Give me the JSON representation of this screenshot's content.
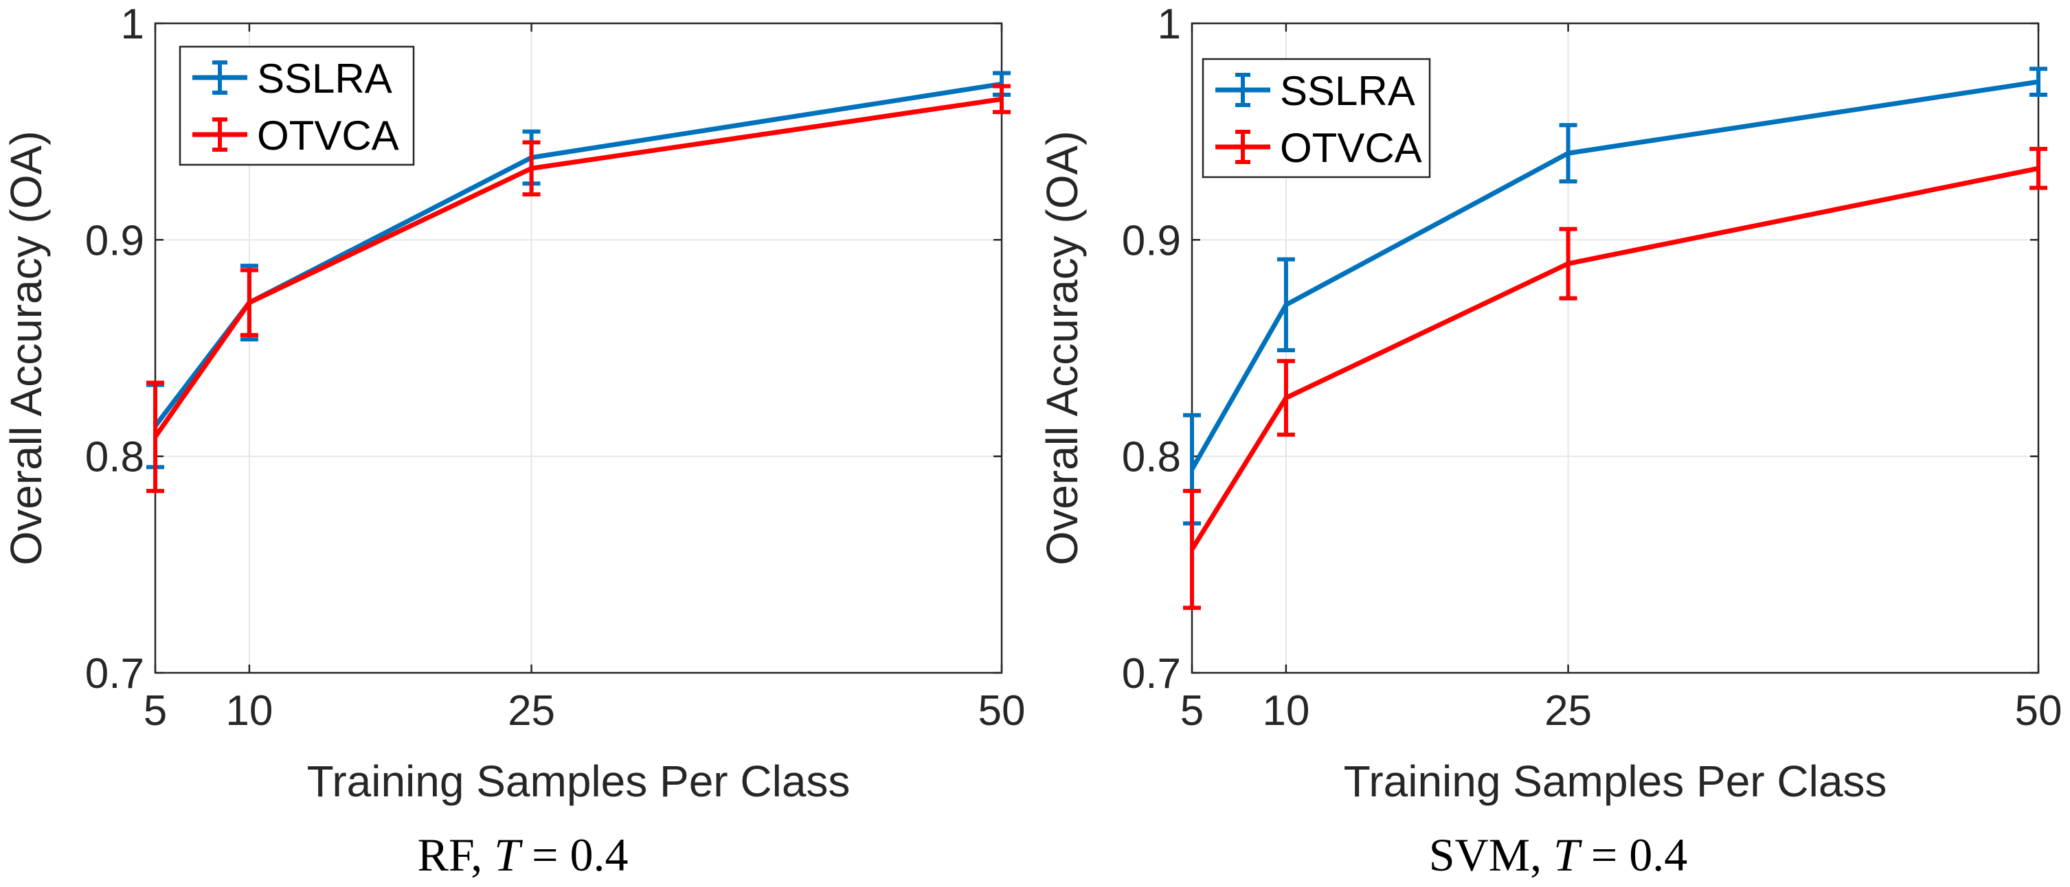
{
  "chart_data": [
    {
      "type": "line",
      "title": "",
      "caption": {
        "prefix": "RF, ",
        "var": "T",
        "eq": " = 0.4"
      },
      "xlabel": "Training Samples Per Class",
      "ylabel": "Overall Accuracy (OA)",
      "x": [
        5,
        10,
        25,
        50
      ],
      "xlim": [
        5,
        50
      ],
      "ylim": [
        0.7,
        1
      ],
      "xticks": [
        5,
        10,
        25,
        50
      ],
      "xtick_labels": [
        "5",
        "10",
        "25",
        "50"
      ],
      "yticks": [
        0.7,
        0.8,
        0.9,
        1
      ],
      "ytick_labels": [
        "0.7",
        "0.8",
        "0.9",
        "1"
      ],
      "grid": true,
      "legend_position": "top-left",
      "series": [
        {
          "name": "SSLRA",
          "color": "#0072BD",
          "values": [
            0.814,
            0.871,
            0.938,
            0.972
          ],
          "errors": [
            0.019,
            0.017,
            0.012,
            0.005
          ]
        },
        {
          "name": "OTVCA",
          "color": "#FF0000",
          "values": [
            0.809,
            0.871,
            0.933,
            0.965
          ],
          "errors": [
            0.025,
            0.015,
            0.012,
            0.006
          ]
        }
      ]
    },
    {
      "type": "line",
      "title": "",
      "caption": {
        "prefix": "SVM, ",
        "var": "T",
        "eq": " = 0.4"
      },
      "xlabel": "Training Samples Per Class",
      "ylabel": "Overall Accuracy (OA)",
      "x": [
        5,
        10,
        25,
        50
      ],
      "xlim": [
        5,
        50
      ],
      "ylim": [
        0.7,
        1
      ],
      "xticks": [
        5,
        10,
        25,
        50
      ],
      "xtick_labels": [
        "5",
        "10",
        "25",
        "50"
      ],
      "yticks": [
        0.7,
        0.8,
        0.9,
        1
      ],
      "ytick_labels": [
        "0.7",
        "0.8",
        "0.9",
        "1"
      ],
      "grid": true,
      "legend_position": "top-left",
      "series": [
        {
          "name": "SSLRA",
          "color": "#0072BD",
          "values": [
            0.794,
            0.87,
            0.94,
            0.973
          ],
          "errors": [
            0.025,
            0.021,
            0.013,
            0.006
          ]
        },
        {
          "name": "OTVCA",
          "color": "#FF0000",
          "values": [
            0.757,
            0.827,
            0.889,
            0.933
          ],
          "errors": [
            0.027,
            0.017,
            0.016,
            0.009
          ]
        }
      ]
    }
  ]
}
